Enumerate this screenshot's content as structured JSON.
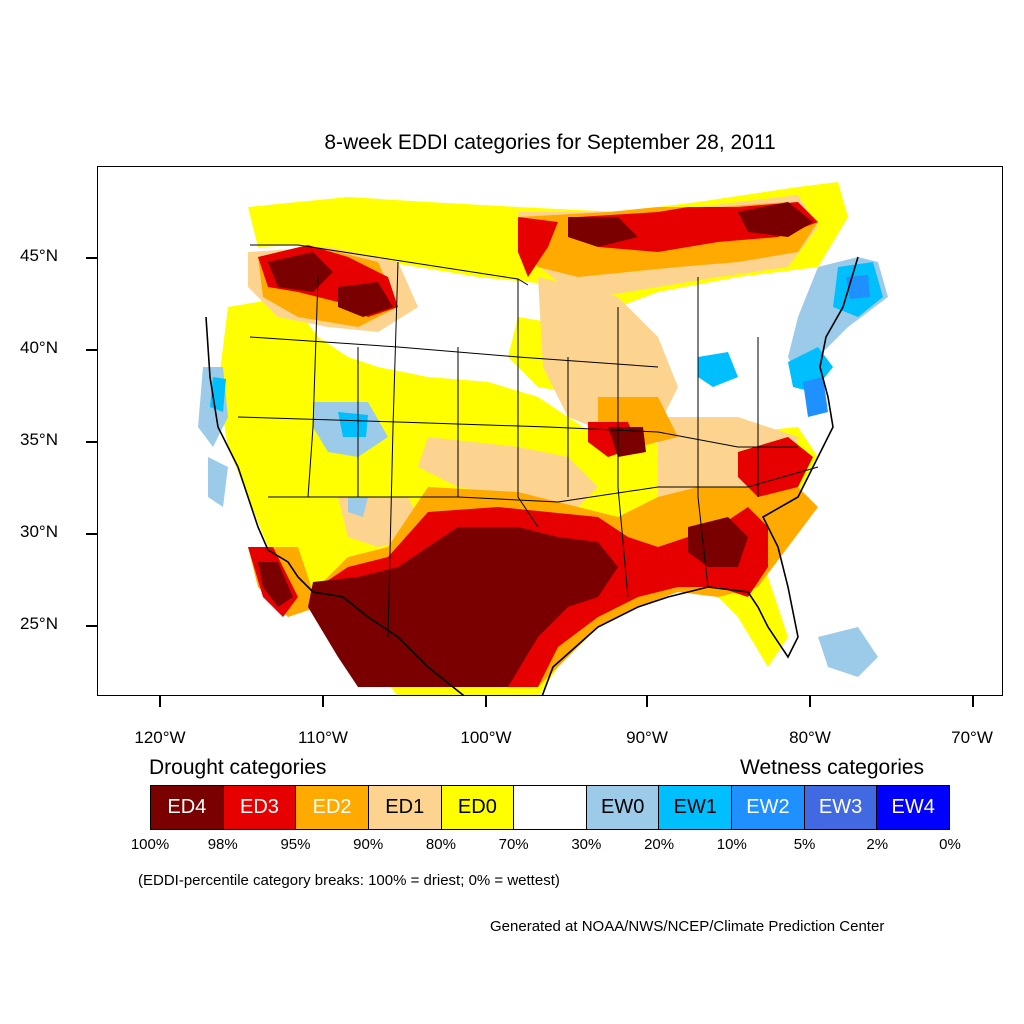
{
  "title": "8-week EDDI categories for September 28, 2011",
  "axes": {
    "lat_labels": [
      "45°N",
      "40°N",
      "35°N",
      "30°N",
      "25°N"
    ],
    "lon_labels": [
      "120°W",
      "110°W",
      "100°W",
      "90°W",
      "80°W",
      "70°W"
    ]
  },
  "map": {
    "region": "Contiguous United States",
    "lat_range": [
      21,
      49.5
    ],
    "lon_range": [
      -124,
      -68.5
    ],
    "ocean_color": "#ffffff",
    "boundary_color": "#000000"
  },
  "legend": {
    "drought_heading": "Drought categories",
    "wetness_heading": "Wetness categories",
    "categories": [
      {
        "label": "ED4",
        "color": "#7a0000",
        "text_color": "#ffffff"
      },
      {
        "label": "ED3",
        "color": "#e60000",
        "text_color": "#ffffff"
      },
      {
        "label": "ED2",
        "color": "#ffaa00",
        "text_color": "#ffffff"
      },
      {
        "label": "ED1",
        "color": "#fcd38f",
        "text_color": "#000000"
      },
      {
        "label": "ED0",
        "color": "#ffff00",
        "text_color": "#000000"
      },
      {
        "label": "",
        "color": "#ffffff",
        "text_color": "#000000"
      },
      {
        "label": "EW0",
        "color": "#9ccbea",
        "text_color": "#000000"
      },
      {
        "label": "EW1",
        "color": "#00bfff",
        "text_color": "#000000"
      },
      {
        "label": "EW2",
        "color": "#1e90ff",
        "text_color": "#ffffff"
      },
      {
        "label": "EW3",
        "color": "#4169e1",
        "text_color": "#ffffff"
      },
      {
        "label": "EW4",
        "color": "#0000ff",
        "text_color": "#ffffff"
      }
    ],
    "breaks": [
      "100%",
      "98%",
      "95%",
      "90%",
      "80%",
      "70%",
      "30%",
      "20%",
      "10%",
      "5%",
      "2%",
      "0%"
    ]
  },
  "breaks_note": "(EDDI-percentile category breaks: 100% = driest; 0% = wettest)",
  "credit": "Generated at NOAA/NWS/NCEP/Climate Prediction Center"
}
